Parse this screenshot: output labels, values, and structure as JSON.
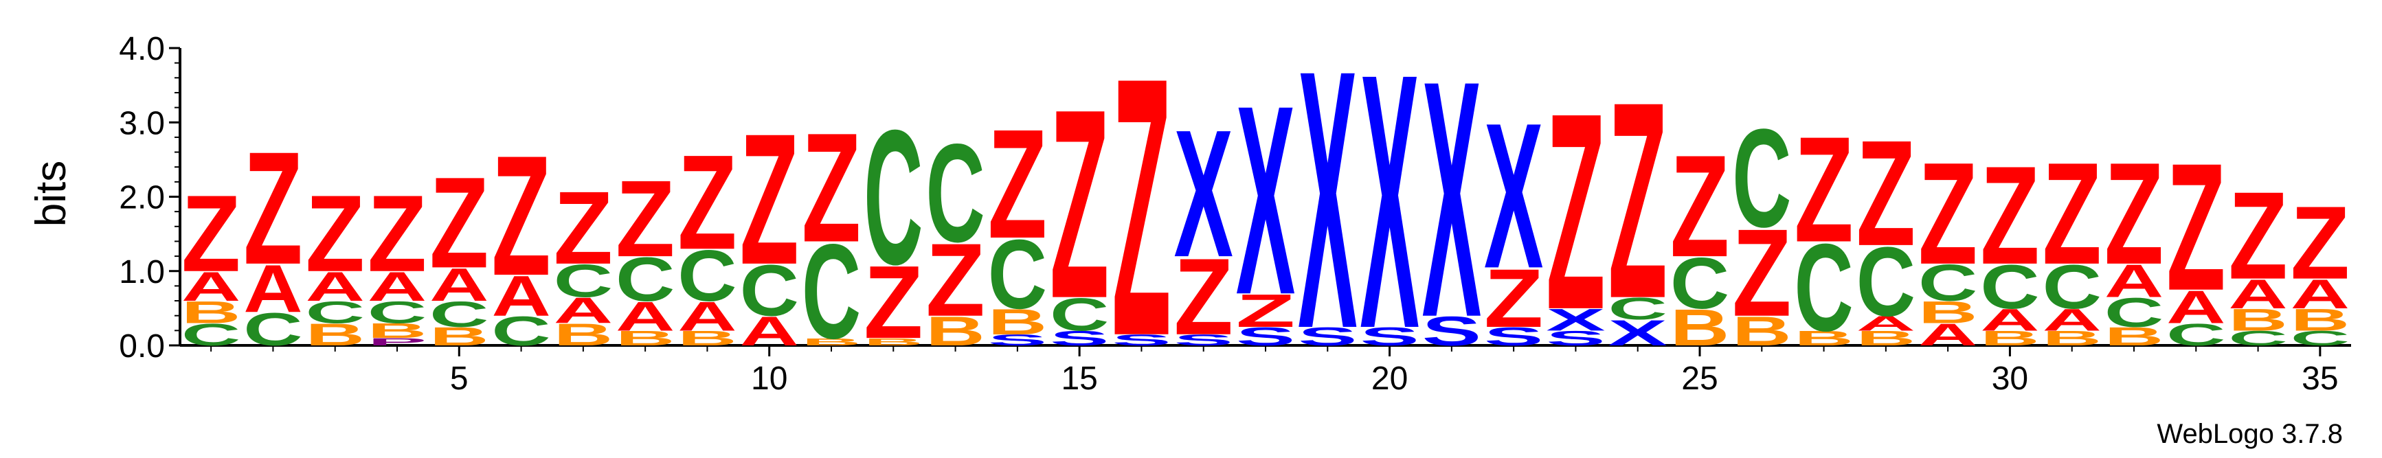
{
  "chart_data": {
    "type": "sequence-logo",
    "ylabel": "bits",
    "ylim": [
      0,
      4.0
    ],
    "yticks": [
      "0.0",
      "1.0",
      "2.0",
      "3.0",
      "4.0"
    ],
    "xticks": [
      "5",
      "10",
      "15",
      "20",
      "25",
      "30",
      "35"
    ],
    "xtick_positions": [
      5,
      10,
      15,
      20,
      25,
      30,
      35
    ],
    "footer": "WebLogo 3.7.8",
    "colors": {
      "Z": "#ff0000",
      "X": "#0000ff",
      "S": "#0000ff",
      "C": "#228b22",
      "A": "#ff0000",
      "B": "#ff8c00",
      "P": "#800080"
    },
    "positions": [
      {
        "pos": 1,
        "stack": [
          [
            "C",
            0.3
          ],
          [
            "B",
            0.3
          ],
          [
            "A",
            0.4
          ],
          [
            "Z",
            1.05
          ]
        ]
      },
      {
        "pos": 2,
        "stack": [
          [
            "C",
            0.45
          ],
          [
            "A",
            0.65
          ],
          [
            "Z",
            1.55
          ]
        ]
      },
      {
        "pos": 3,
        "stack": [
          [
            "B",
            0.3
          ],
          [
            "C",
            0.3
          ],
          [
            "A",
            0.4
          ],
          [
            "Z",
            1.05
          ]
        ]
      },
      {
        "pos": 4,
        "stack": [
          [
            "P",
            0.1
          ],
          [
            "B",
            0.2
          ],
          [
            "C",
            0.3
          ],
          [
            "A",
            0.4
          ],
          [
            "Z",
            1.05
          ]
        ]
      },
      {
        "pos": 5,
        "stack": [
          [
            "B",
            0.25
          ],
          [
            "C",
            0.35
          ],
          [
            "A",
            0.45
          ],
          [
            "Z",
            1.25
          ]
        ]
      },
      {
        "pos": 6,
        "stack": [
          [
            "C",
            0.4
          ],
          [
            "A",
            0.55
          ],
          [
            "Z",
            1.65
          ]
        ]
      },
      {
        "pos": 7,
        "stack": [
          [
            "B",
            0.3
          ],
          [
            "A",
            0.35
          ],
          [
            "C",
            0.45
          ],
          [
            "Z",
            1.0
          ]
        ]
      },
      {
        "pos": 8,
        "stack": [
          [
            "B",
            0.2
          ],
          [
            "A",
            0.4
          ],
          [
            "C",
            0.6
          ],
          [
            "Z",
            1.05
          ]
        ]
      },
      {
        "pos": 9,
        "stack": [
          [
            "B",
            0.2
          ],
          [
            "A",
            0.4
          ],
          [
            "C",
            0.7
          ],
          [
            "Z",
            1.3
          ]
        ]
      },
      {
        "pos": 10,
        "stack": [
          [
            "A",
            0.4
          ],
          [
            "C",
            0.7
          ],
          [
            "Z",
            1.8
          ]
        ]
      },
      {
        "pos": 11,
        "stack": [
          [
            "B",
            0.1
          ],
          [
            "C",
            1.3
          ],
          [
            "Z",
            1.5
          ]
        ]
      },
      {
        "pos": 12,
        "stack": [
          [
            "B",
            0.1
          ],
          [
            "Z",
            1.0
          ],
          [
            "C",
            1.85
          ]
        ]
      },
      {
        "pos": 13,
        "stack": [
          [
            "B",
            0.4
          ],
          [
            "Z",
            1.0
          ],
          [
            "C",
            1.35
          ]
        ]
      },
      {
        "pos": 14,
        "stack": [
          [
            "S",
            0.15
          ],
          [
            "B",
            0.35
          ],
          [
            "C",
            0.95
          ],
          [
            "Z",
            1.5
          ]
        ]
      },
      {
        "pos": 15,
        "stack": [
          [
            "S",
            0.2
          ],
          [
            "C",
            0.45
          ],
          [
            "Z",
            2.6
          ]
        ]
      },
      {
        "pos": 16,
        "stack": [
          [
            "S",
            0.15
          ],
          [
            "Z",
            3.55
          ]
        ]
      },
      {
        "pos": 17,
        "stack": [
          [
            "S",
            0.15
          ],
          [
            "Z",
            1.05
          ],
          [
            "X",
            1.75
          ]
        ]
      },
      {
        "pos": 18,
        "stack": [
          [
            "S",
            0.25
          ],
          [
            "Z",
            0.45
          ],
          [
            "X",
            2.6
          ]
        ]
      },
      {
        "pos": 19,
        "stack": [
          [
            "S",
            0.25
          ],
          [
            "X",
            3.55
          ]
        ]
      },
      {
        "pos": 20,
        "stack": [
          [
            "S",
            0.25
          ],
          [
            "X",
            3.5
          ]
        ]
      },
      {
        "pos": 21,
        "stack": [
          [
            "S",
            0.4
          ],
          [
            "X",
            3.25
          ]
        ]
      },
      {
        "pos": 22,
        "stack": [
          [
            "S",
            0.25
          ],
          [
            "Z",
            0.8
          ],
          [
            "X",
            2.0
          ]
        ]
      },
      {
        "pos": 23,
        "stack": [
          [
            "S",
            0.2
          ],
          [
            "X",
            0.3
          ],
          [
            "Z",
            2.7
          ]
        ]
      },
      {
        "pos": 24,
        "stack": [
          [
            "X",
            0.35
          ],
          [
            "C",
            0.3
          ],
          [
            "Z",
            2.7
          ]
        ]
      },
      {
        "pos": 25,
        "stack": [
          [
            "B",
            0.5
          ],
          [
            "C",
            0.7
          ],
          [
            "Z",
            1.4
          ]
        ]
      },
      {
        "pos": 26,
        "stack": [
          [
            "B",
            0.4
          ],
          [
            "Z",
            1.2
          ],
          [
            "C",
            1.35
          ]
        ]
      },
      {
        "pos": 27,
        "stack": [
          [
            "B",
            0.2
          ],
          [
            "C",
            1.2
          ],
          [
            "Z",
            1.45
          ]
        ]
      },
      {
        "pos": 28,
        "stack": [
          [
            "B",
            0.2
          ],
          [
            "A",
            0.2
          ],
          [
            "C",
            0.95
          ],
          [
            "Z",
            1.45
          ]
        ]
      },
      {
        "pos": 29,
        "stack": [
          [
            "A",
            0.3
          ],
          [
            "B",
            0.3
          ],
          [
            "C",
            0.5
          ],
          [
            "Z",
            1.4
          ]
        ]
      },
      {
        "pos": 30,
        "stack": [
          [
            "B",
            0.2
          ],
          [
            "A",
            0.3
          ],
          [
            "C",
            0.6
          ],
          [
            "Z",
            1.35
          ]
        ]
      },
      {
        "pos": 31,
        "stack": [
          [
            "B",
            0.2
          ],
          [
            "A",
            0.3
          ],
          [
            "C",
            0.6
          ],
          [
            "Z",
            1.4
          ]
        ]
      },
      {
        "pos": 32,
        "stack": [
          [
            "B",
            0.25
          ],
          [
            "C",
            0.4
          ],
          [
            "A",
            0.45
          ],
          [
            "Z",
            1.4
          ]
        ]
      },
      {
        "pos": 33,
        "stack": [
          [
            "C",
            0.3
          ],
          [
            "A",
            0.45
          ],
          [
            "Z",
            1.75
          ]
        ]
      },
      {
        "pos": 34,
        "stack": [
          [
            "C",
            0.2
          ],
          [
            "B",
            0.3
          ],
          [
            "A",
            0.4
          ],
          [
            "Z",
            1.2
          ]
        ]
      },
      {
        "pos": 35,
        "stack": [
          [
            "C",
            0.2
          ],
          [
            "B",
            0.3
          ],
          [
            "A",
            0.4
          ],
          [
            "Z",
            1.0
          ]
        ]
      }
    ]
  }
}
